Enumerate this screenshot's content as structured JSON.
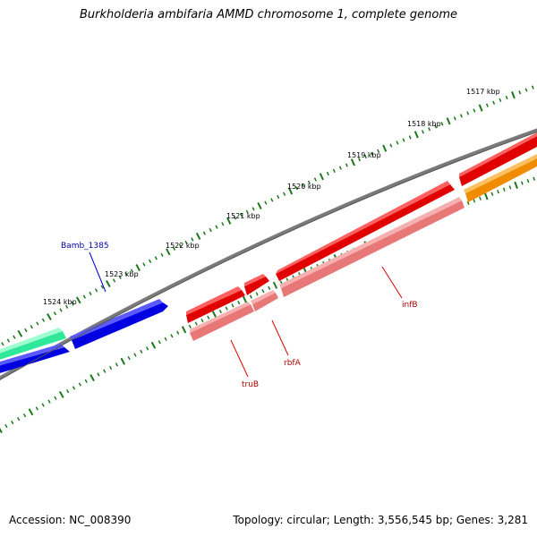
{
  "title": "Burkholderia ambifaria AMMD chromosome 1, complete genome",
  "footer": {
    "accession": "Accession: NC_008390",
    "summary": "Topology: circular; Length: 3,556,545 bp; Genes: 3,281"
  },
  "colors": {
    "backbone": "#7a7a7a",
    "tick": "#1a7a1a",
    "gene_blue": "#0000e0",
    "gene_red": "#e00000",
    "gene_pink": "#e87878",
    "gene_teal": "#2fe89a",
    "gene_orange": "#f08c00",
    "label_blue": "#0000b0",
    "label_red": "#b00000"
  },
  "ruler": {
    "labels": [
      "1517 kbp",
      "1518 kbp",
      "1519 kbp",
      "1520 kbp",
      "1521 kbp",
      "1522 kbp",
      "1523 kbp",
      "1524 kbp"
    ]
  },
  "genes": [
    {
      "name": "Bamb_1385",
      "color": "label_blue"
    },
    {
      "name": "truB",
      "color": "label_red"
    },
    {
      "name": "rbfA",
      "color": "label_red"
    },
    {
      "name": "infB",
      "color": "label_red"
    }
  ]
}
